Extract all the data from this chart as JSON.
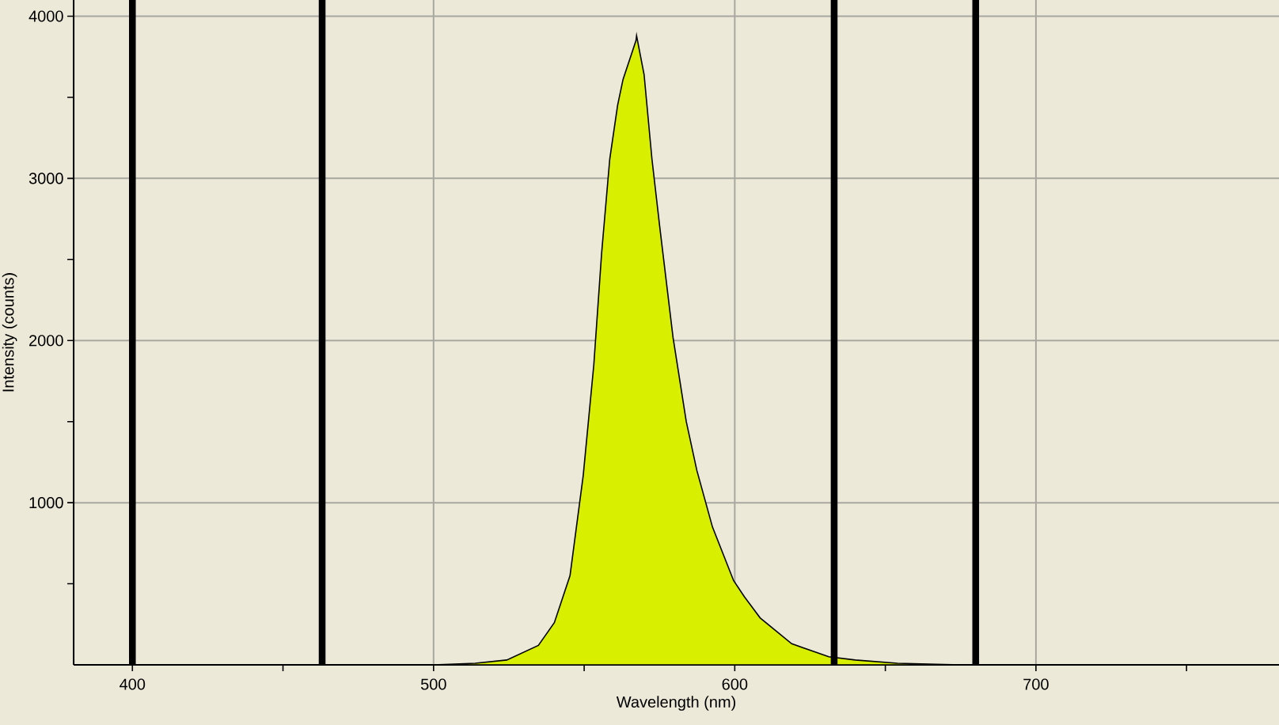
{
  "chart_data": {
    "type": "area",
    "xlabel": "Wavelength (nm)",
    "ylabel": "Intensity (counts)",
    "x": [
      500,
      513.8,
      524.3,
      534.8,
      540.1,
      545.3,
      549.7,
      553.2,
      555.8,
      558.5,
      561.1,
      562.9,
      567.2,
      567.4,
      569.9,
      572.5,
      575.1,
      579.5,
      583.9,
      587.4,
      592.6,
      599.6,
      603.2,
      608.4,
      618.9,
      631.2,
      640,
      654,
      675,
      700
    ],
    "series": [
      {
        "color": "#d8f000",
        "values": [
          0,
          10,
          30,
          120,
          260,
          550,
          1170,
          1850,
          2540,
          3120,
          3450,
          3610,
          3850,
          3880,
          3640,
          3120,
          2700,
          2020,
          1500,
          1200,
          850,
          520,
          420,
          290,
          130,
          50,
          30,
          10,
          0,
          0
        ]
      }
    ],
    "xlim": [
      380.5,
      780.7
    ],
    "ylim": [
      0,
      4100
    ],
    "xticks": [
      400,
      500,
      600,
      700,
      {
        "value": 450,
        "label": null
      },
      {
        "value": 550,
        "label": null
      },
      {
        "value": 650,
        "label": null
      },
      {
        "value": 750,
        "label": null
      }
    ],
    "yticks": [
      1000,
      2000,
      3000,
      4000,
      {
        "value": 500,
        "label": null
      },
      {
        "value": 1500,
        "label": null
      },
      {
        "value": 2500,
        "label": null
      },
      {
        "value": 3500,
        "label": null
      }
    ],
    "grid": true,
    "ref_lines": [
      {
        "axis": "x",
        "value": 400,
        "color": "#000000"
      },
      {
        "axis": "x",
        "value": 463,
        "color": "#000000"
      },
      {
        "axis": "x",
        "value": 633,
        "color": "#000000"
      },
      {
        "axis": "x",
        "value": 680,
        "color": "#000000"
      }
    ]
  }
}
